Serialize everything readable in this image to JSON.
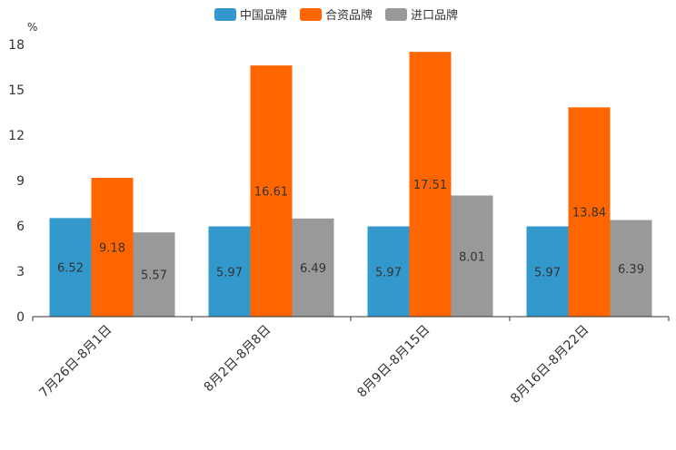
{
  "chart_data": {
    "type": "bar",
    "unit": "%",
    "categories": [
      "7月26日-8月1日",
      "8月2日-8月8日",
      "8月9日-8月15日",
      "8月16日-8月22日"
    ],
    "series": [
      {
        "name": "中国品牌",
        "color": "#3399cc",
        "values": [
          6.52,
          5.97,
          5.97,
          5.97
        ],
        "labels": [
          "6.52",
          "5.97",
          "5.97",
          "5.97"
        ]
      },
      {
        "name": "合资品牌",
        "color": "#ff6600",
        "values": [
          9.18,
          16.61,
          17.51,
          13.84
        ],
        "labels": [
          "9.18",
          "16.61",
          "17.51",
          "13.84"
        ]
      },
      {
        "name": "进口品牌",
        "color": "#999999",
        "values": [
          5.57,
          6.49,
          8.01,
          6.39
        ],
        "labels": [
          "5.57",
          "6.49",
          "8.01",
          "6.39"
        ]
      }
    ],
    "yticks": [
      0,
      3,
      6,
      9,
      12,
      15,
      18
    ],
    "ytick_labels": [
      "0",
      "3",
      "6",
      "9",
      "12",
      "15",
      "18"
    ],
    "ylim": [
      0,
      18
    ],
    "legend_position": "top-center",
    "grid": false
  }
}
